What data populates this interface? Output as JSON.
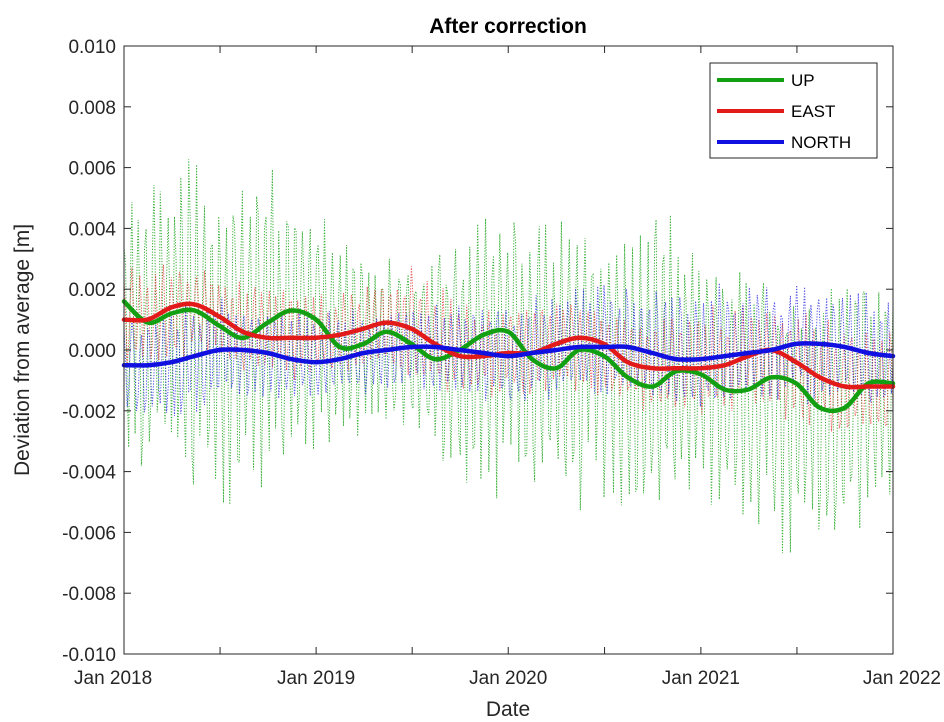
{
  "chart_data": {
    "type": "line",
    "title": "After correction",
    "xlabel": "Date",
    "ylabel": "Deviation from average [m]",
    "x_range": [
      "2018-01-01",
      "2022-01-01"
    ],
    "ylim": [
      -0.01,
      0.01
    ],
    "grid": false,
    "legend_position": "top-right",
    "x_ticks": [
      {
        "date": "2018-01-01",
        "label": "Jan 2018"
      },
      {
        "date": "2019-01-01",
        "label": "Jan 2019"
      },
      {
        "date": "2020-01-01",
        "label": "Jan 2020"
      },
      {
        "date": "2021-01-01",
        "label": "Jan 2021"
      },
      {
        "date": "2022-01-01",
        "label": "Jan 2022"
      }
    ],
    "y_ticks": [
      {
        "value": 0.01,
        "label": "0.010"
      },
      {
        "value": 0.008,
        "label": "0.008"
      },
      {
        "value": 0.006,
        "label": "0.006"
      },
      {
        "value": 0.004,
        "label": "0.004"
      },
      {
        "value": 0.002,
        "label": "0.002"
      },
      {
        "value": 0.0,
        "label": "0.000"
      },
      {
        "value": -0.002,
        "label": "-0.002"
      },
      {
        "value": -0.004,
        "label": "-0.004"
      },
      {
        "value": -0.006,
        "label": "-0.006"
      },
      {
        "value": -0.008,
        "label": "-0.008"
      },
      {
        "value": -0.01,
        "label": "-0.010"
      }
    ],
    "series": [
      {
        "name": "UP",
        "color": "#12a012",
        "smoothed": {
          "x": [
            "2018-01-01",
            "2018-02-15",
            "2018-04-01",
            "2018-05-15",
            "2018-07-01",
            "2018-08-15",
            "2018-10-01",
            "2018-11-15",
            "2019-01-01",
            "2019-02-15",
            "2019-04-01",
            "2019-05-15",
            "2019-07-01",
            "2019-08-15",
            "2019-10-01",
            "2019-11-15",
            "2020-01-01",
            "2020-02-15",
            "2020-04-01",
            "2020-05-15",
            "2020-07-01",
            "2020-08-15",
            "2020-10-01",
            "2020-11-15",
            "2021-01-01",
            "2021-02-15",
            "2021-04-01",
            "2021-05-15",
            "2021-07-01",
            "2021-08-15",
            "2021-10-01",
            "2021-11-15",
            "2022-01-01"
          ],
          "y": [
            0.0016,
            0.0009,
            0.0012,
            0.0013,
            0.0008,
            0.0004,
            0.0009,
            0.0013,
            0.001,
            0.0001,
            0.0002,
            0.0006,
            0.0002,
            -0.0003,
            0.0,
            0.0005,
            0.0006,
            -0.0003,
            -0.0006,
            0.0,
            -0.0002,
            -0.0009,
            -0.0012,
            -0.0007,
            -0.0008,
            -0.0013,
            -0.0013,
            -0.0009,
            -0.0011,
            -0.0019,
            -0.0019,
            -0.0011,
            -0.0011
          ]
        },
        "raw_envelope": {
          "x": [
            "2018-01-01",
            "2018-04-01",
            "2018-07-01",
            "2018-10-01",
            "2019-01-01",
            "2019-04-01",
            "2019-07-01",
            "2019-10-01",
            "2020-01-01",
            "2020-04-01",
            "2020-07-01",
            "2020-10-01",
            "2021-01-01",
            "2021-04-01",
            "2021-07-01",
            "2021-10-01",
            "2022-01-01"
          ],
          "max": [
            0.0045,
            0.0069,
            0.0061,
            0.0068,
            0.0046,
            0.0038,
            0.0026,
            0.0043,
            0.005,
            0.0045,
            0.0034,
            0.006,
            0.0035,
            0.0028,
            0.0018,
            0.0028,
            0.002
          ],
          "min": [
            -0.0041,
            -0.0051,
            -0.0055,
            -0.0049,
            -0.004,
            -0.003,
            -0.003,
            -0.0048,
            -0.0052,
            -0.0051,
            -0.0056,
            -0.0058,
            -0.0055,
            -0.0066,
            -0.0074,
            -0.0068,
            -0.0062
          ]
        }
      },
      {
        "name": "EAST",
        "color": "#e21a1a",
        "smoothed": {
          "x": [
            "2018-01-01",
            "2018-02-15",
            "2018-04-01",
            "2018-05-15",
            "2018-07-01",
            "2018-08-15",
            "2018-10-01",
            "2018-11-15",
            "2019-01-01",
            "2019-02-15",
            "2019-04-01",
            "2019-05-15",
            "2019-07-01",
            "2019-08-15",
            "2019-10-01",
            "2019-11-15",
            "2020-01-01",
            "2020-02-15",
            "2020-04-01",
            "2020-05-15",
            "2020-07-01",
            "2020-08-15",
            "2020-10-01",
            "2020-11-15",
            "2021-01-01",
            "2021-02-15",
            "2021-04-01",
            "2021-05-15",
            "2021-07-01",
            "2021-08-15",
            "2021-10-01",
            "2021-11-15",
            "2022-01-01"
          ],
          "y": [
            0.001,
            0.001,
            0.0014,
            0.0015,
            0.0011,
            0.0006,
            0.0004,
            0.0004,
            0.0004,
            0.0005,
            0.0007,
            0.0009,
            0.0007,
            0.0002,
            -0.0002,
            -0.0002,
            -0.0001,
            -0.0001,
            0.0002,
            0.0004,
            0.0002,
            -0.0004,
            -0.0006,
            -0.0006,
            -0.0006,
            -0.0005,
            -0.0002,
            0.0,
            -0.0004,
            -0.0009,
            -0.0012,
            -0.0012,
            -0.0012
          ]
        },
        "raw_envelope": {
          "x": [
            "2018-01-01",
            "2018-04-01",
            "2018-07-01",
            "2018-10-01",
            "2019-01-01",
            "2019-04-01",
            "2019-07-01",
            "2019-10-01",
            "2020-01-01",
            "2020-04-01",
            "2020-07-01",
            "2020-10-01",
            "2021-01-01",
            "2021-04-01",
            "2021-07-01",
            "2021-10-01",
            "2022-01-01"
          ],
          "max": [
            0.003,
            0.0029,
            0.0026,
            0.0022,
            0.002,
            0.0022,
            0.0028,
            0.0017,
            0.0015,
            0.0016,
            0.0014,
            0.0012,
            0.0016,
            0.0016,
            0.0014,
            0.001,
            0.0012
          ],
          "min": [
            -0.0006,
            -0.0004,
            -0.0006,
            -0.001,
            -0.0012,
            -0.001,
            -0.0012,
            -0.0016,
            -0.0016,
            -0.0014,
            -0.0018,
            -0.0022,
            -0.0024,
            -0.002,
            -0.0026,
            -0.003,
            -0.003
          ]
        }
      },
      {
        "name": "NORTH",
        "color": "#1010e0",
        "smoothed": {
          "x": [
            "2018-01-01",
            "2018-02-15",
            "2018-04-01",
            "2018-05-15",
            "2018-07-01",
            "2018-08-15",
            "2018-10-01",
            "2018-11-15",
            "2019-01-01",
            "2019-02-15",
            "2019-04-01",
            "2019-05-15",
            "2019-07-01",
            "2019-08-15",
            "2019-10-01",
            "2019-11-15",
            "2020-01-01",
            "2020-02-15",
            "2020-04-01",
            "2020-05-15",
            "2020-07-01",
            "2020-08-15",
            "2020-10-01",
            "2020-11-15",
            "2021-01-01",
            "2021-02-15",
            "2021-04-01",
            "2021-05-15",
            "2021-07-01",
            "2021-08-15",
            "2021-10-01",
            "2021-11-15",
            "2022-01-01"
          ],
          "y": [
            -0.0005,
            -0.0005,
            -0.0004,
            -0.0002,
            0.0,
            0.0,
            -0.0001,
            -0.0003,
            -0.0004,
            -0.0003,
            -0.0001,
            0.0,
            0.0001,
            0.0001,
            0.0,
            -0.0001,
            -0.0002,
            -0.0001,
            0.0,
            0.0001,
            0.0001,
            0.0001,
            -0.0001,
            -0.0003,
            -0.0003,
            -0.0002,
            -0.0001,
            0.0,
            0.0002,
            0.0002,
            0.0001,
            -0.0001,
            -0.0002
          ]
        },
        "raw_envelope": {
          "x": [
            "2018-01-01",
            "2018-04-01",
            "2018-07-01",
            "2018-10-01",
            "2019-01-01",
            "2019-04-01",
            "2019-07-01",
            "2019-10-01",
            "2020-01-01",
            "2020-04-01",
            "2020-07-01",
            "2020-10-01",
            "2021-01-01",
            "2021-04-01",
            "2021-07-01",
            "2021-10-01",
            "2022-01-01"
          ],
          "max": [
            0.0012,
            0.0015,
            0.0018,
            0.0016,
            0.0014,
            0.0014,
            0.0016,
            0.0016,
            0.0018,
            0.002,
            0.0024,
            0.0022,
            0.0022,
            0.0024,
            0.0026,
            0.002,
            0.0018
          ],
          "min": [
            -0.0022,
            -0.0026,
            -0.002,
            -0.0018,
            -0.0016,
            -0.0018,
            -0.0016,
            -0.0018,
            -0.002,
            -0.0018,
            -0.0016,
            -0.0018,
            -0.0022,
            -0.002,
            -0.0018,
            -0.002,
            -0.0022
          ]
        }
      }
    ]
  }
}
